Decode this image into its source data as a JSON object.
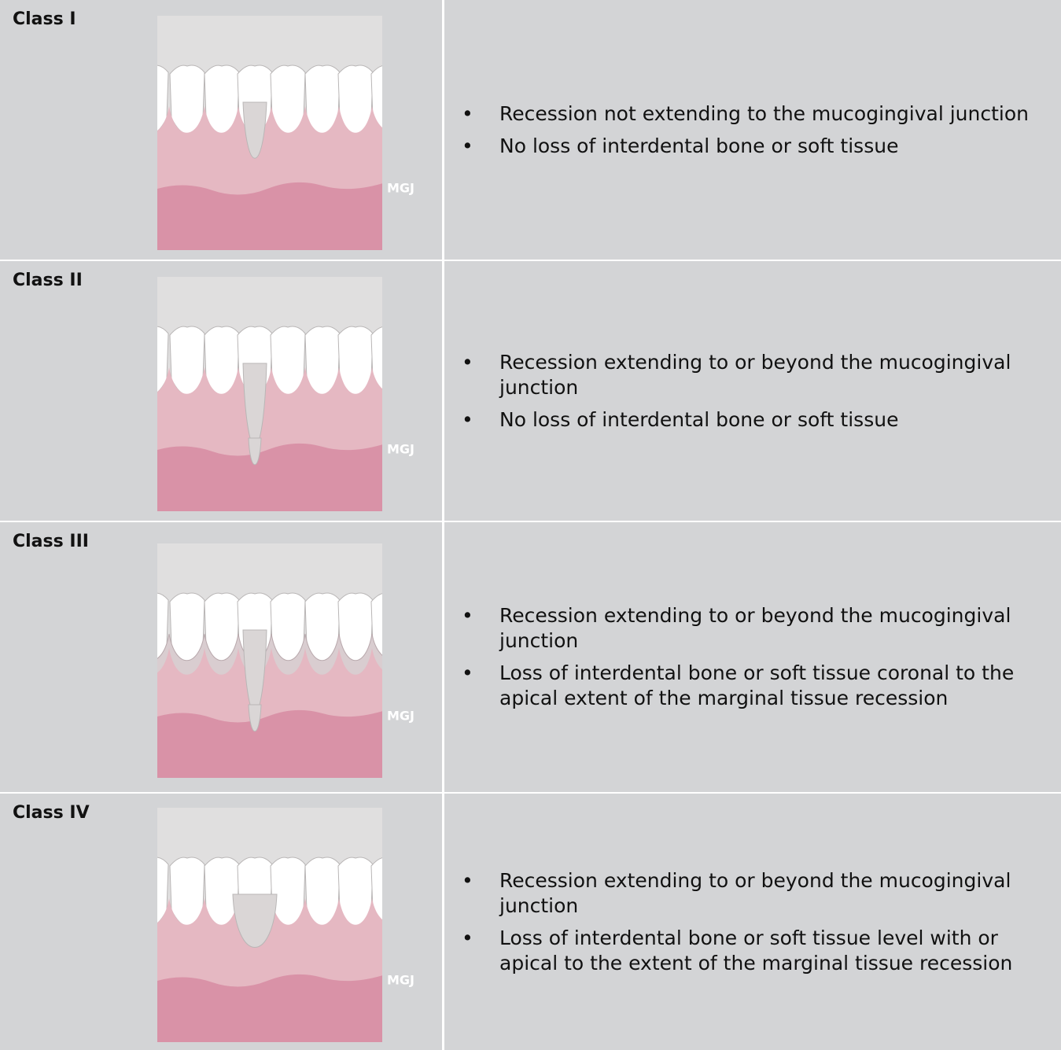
{
  "rows": [
    {
      "label": "Class I",
      "mgj": "MGJ",
      "bullets": [
        "Recession not extending to the mucogingival junction",
        "No loss of interdental bone or soft tissue"
      ]
    },
    {
      "label": "Class II",
      "mgj": "MGJ",
      "bullets": [
        "Recession extending to or beyond the mucogingival junction",
        "No loss of interdental bone or soft tissue"
      ]
    },
    {
      "label": "Class III",
      "mgj": "MGJ",
      "bullets": [
        "Recession extending to or beyond the mucogingival junction",
        "Loss of interdental bone or soft tissue coronal to the apical extent of the marginal tissue recession"
      ]
    },
    {
      "label": "Class IV",
      "mgj": "MGJ",
      "bullets": [
        "Recession extending to or beyond the mucogingival junction",
        "Loss of interdental bone or soft tissue level with or apical to the extent of the marginal tissue recession"
      ]
    }
  ]
}
